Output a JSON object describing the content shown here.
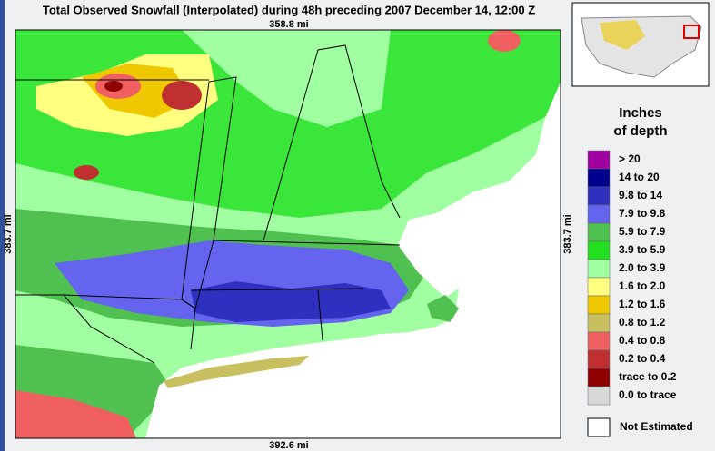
{
  "header": {
    "title": "Total Observed Snowfall (Interpolated) during 48h preceding 2007 December 14, 12:00 Z"
  },
  "map": {
    "top_label": "358.8 mi",
    "left_label": "383.7 mi",
    "right_label": "383.7 mi",
    "bottom_label": "392.6 mi"
  },
  "legend": {
    "title_line1": "Inches",
    "title_line2": "of depth",
    "rows": [
      {
        "label": ">  20",
        "color": "#a000a0"
      },
      {
        "label": "14 to  20",
        "color": "#000090"
      },
      {
        "label": "9.8 to  14",
        "color": "#3030c0"
      },
      {
        "label": "7.9 to  9.8",
        "color": "#6464ee"
      },
      {
        "label": "5.9 to  7.9",
        "color": "#50c050"
      },
      {
        "label": "3.9 to  5.9",
        "color": "#20e020"
      },
      {
        "label": "2.0 to  3.9",
        "color": "#a0ffa0"
      },
      {
        "label": "1.6 to  2.0",
        "color": "#ffff80"
      },
      {
        "label": "1.2 to  1.6",
        "color": "#f0c800"
      },
      {
        "label": "0.8 to  1.2",
        "color": "#c8c060"
      },
      {
        "label": "0.4 to  0.8",
        "color": "#f06060"
      },
      {
        "label": "0.2 to  0.4",
        "color": "#c03030"
      },
      {
        "label": "trace to  0.2",
        "color": "#900000"
      },
      {
        "label": "0.0 to trace",
        "color": "#d8d8d8"
      }
    ],
    "not_estimated": "Not Estimated"
  }
}
